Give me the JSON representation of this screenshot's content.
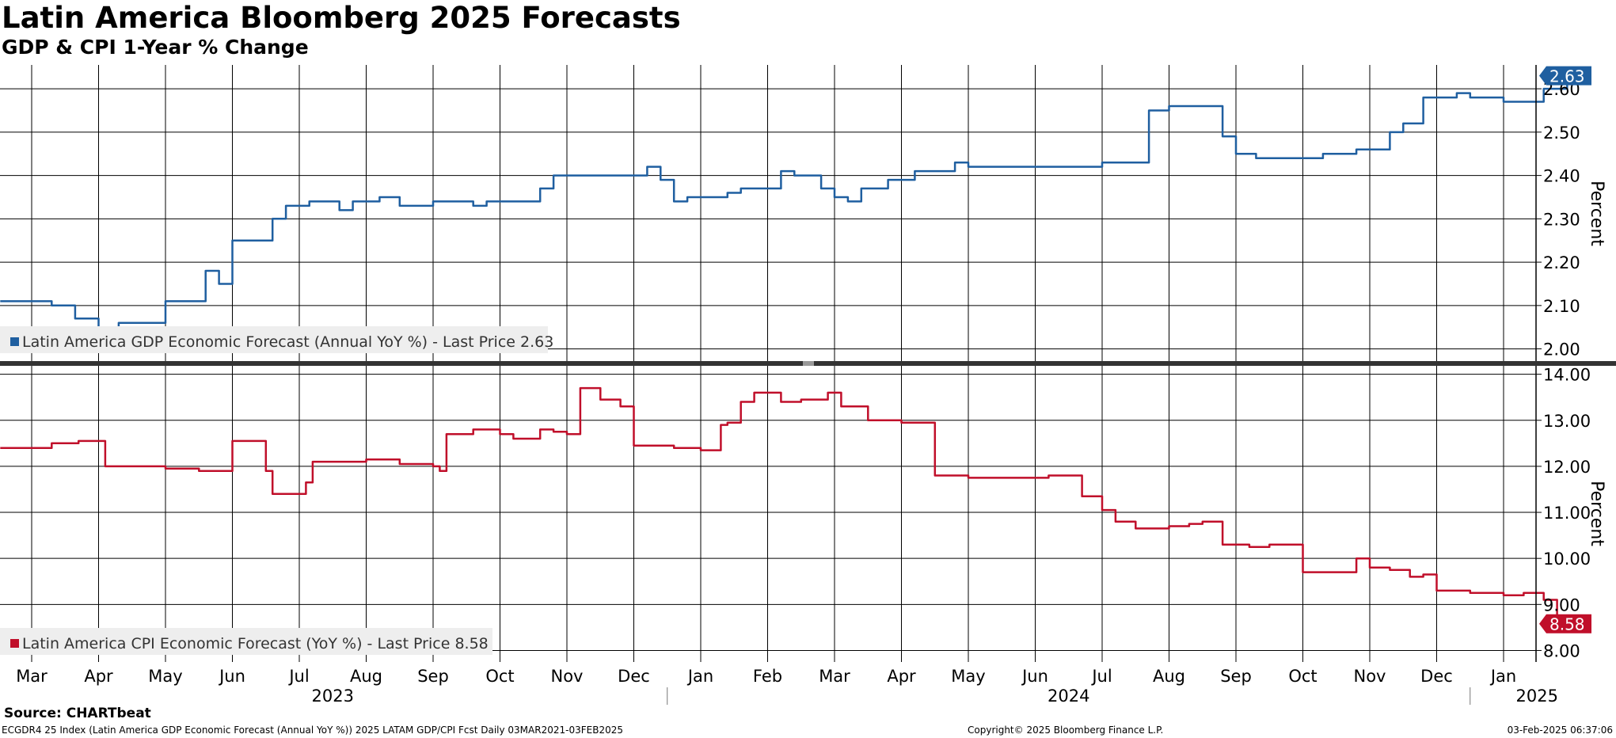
{
  "title": "Latin America Bloomberg 2025 Forecasts",
  "subtitle": "GDP & CPI 1-Year % Change",
  "source": "Source: CHARTbeat",
  "footer": {
    "left": "ECGDR4 25 Index (Latin America GDP Economic Forecast (Annual YoY %)) 2025 LATAM GDP/CPI Fcst  Daily 03MAR2021-03FEB2025",
    "center": "Copyright© 2025 Bloomberg Finance L.P.",
    "right": "03-Feb-2025 06:37:06"
  },
  "colors": {
    "gdp": "#1f5fa0",
    "cpi": "#c00f2a",
    "grid": "#000000",
    "legend_bg": "#eeeeee"
  },
  "chart_data": [
    {
      "type": "line",
      "name": "gdp",
      "ylabel": "Percent",
      "ylim": [
        1.97,
        2.655
      ],
      "yticks": [
        "2.00",
        "2.10",
        "2.20",
        "2.30",
        "2.40",
        "2.50",
        "2.60"
      ],
      "legend": "Latin America GDP Economic Forecast (Annual YoY %) - Last Price 2.63",
      "last_price_label": "2.63",
      "last_price": 2.63,
      "x": [
        0,
        0.3,
        0.65,
        0.7,
        1.0,
        1.3,
        1.5,
        1.7,
        2.0,
        2.3,
        2.5,
        2.6,
        2.8,
        3.0,
        3.2,
        3.4,
        3.6,
        3.8,
        4.0,
        4.15,
        4.3,
        4.45,
        4.6,
        4.8,
        5.0,
        5.2,
        5.5,
        5.6,
        5.8,
        6.0,
        6.2,
        6.6,
        6.8,
        7.0,
        7.2,
        7.4,
        7.6,
        7.8,
        8.0,
        8.2,
        8.5,
        8.8,
        9.0,
        9.2,
        9.4,
        9.6,
        9.8,
        10.0,
        10.2,
        10.4,
        10.6,
        10.8,
        11.0,
        11.2,
        11.4,
        11.6,
        11.8,
        12.0,
        12.2,
        12.4,
        12.6,
        12.8,
        13.0,
        13.2,
        13.4,
        13.6,
        13.8,
        14.0,
        14.2,
        14.5,
        15.0,
        15.5,
        16.0,
        16.3,
        16.5,
        16.7,
        17.0,
        17.3,
        17.5,
        17.8,
        18.0,
        18.3,
        18.5,
        18.8,
        19.0,
        19.3,
        19.5,
        19.8,
        20.0,
        20.3,
        20.5,
        20.8,
        21.0,
        21.3,
        21.5,
        21.8,
        22.0,
        22.3,
        22.6,
        22.95
      ],
      "values": [
        2.11,
        2.1,
        2.07,
        2.07,
        2.05,
        2.06,
        2.06,
        2.06,
        2.11,
        2.11,
        2.11,
        2.18,
        2.15,
        2.25,
        2.25,
        2.25,
        2.3,
        2.33,
        2.33,
        2.34,
        2.34,
        2.34,
        2.32,
        2.34,
        2.34,
        2.35,
        2.33,
        2.33,
        2.33,
        2.34,
        2.34,
        2.33,
        2.34,
        2.34,
        2.34,
        2.34,
        2.37,
        2.4,
        2.4,
        2.4,
        2.4,
        2.4,
        2.4,
        2.42,
        2.39,
        2.34,
        2.35,
        2.35,
        2.35,
        2.36,
        2.37,
        2.37,
        2.37,
        2.41,
        2.4,
        2.4,
        2.37,
        2.35,
        2.34,
        2.37,
        2.37,
        2.39,
        2.39,
        2.41,
        2.41,
        2.41,
        2.43,
        2.42,
        2.42,
        2.42,
        2.42,
        2.42,
        2.43,
        2.43,
        2.43,
        2.55,
        2.56,
        2.56,
        2.56,
        2.49,
        2.45,
        2.44,
        2.44,
        2.44,
        2.44,
        2.45,
        2.45,
        2.46,
        2.46,
        2.5,
        2.52,
        2.58,
        2.58,
        2.59,
        2.58,
        2.58,
        2.57,
        2.57,
        2.6,
        2.63
      ]
    },
    {
      "type": "line",
      "name": "cpi",
      "ylabel": "Percent",
      "ylim": [
        7.75,
        14.2
      ],
      "yticks": [
        "8.00",
        "9.00",
        "10.00",
        "11.00",
        "12.00",
        "13.00",
        "14.00"
      ],
      "legend": "Latin America CPI Economic Forecast (YoY %) - Last Price 8.58",
      "last_price_label": "8.58",
      "last_price": 8.58,
      "x": [
        0,
        0.3,
        0.7,
        1.0,
        1.1,
        1.5,
        2.0,
        2.5,
        2.9,
        3.0,
        3.4,
        3.5,
        3.6,
        4.0,
        4.1,
        4.2,
        4.6,
        5.0,
        5.5,
        6.0,
        6.1,
        6.2,
        6.6,
        7.0,
        7.2,
        7.6,
        7.8,
        8.0,
        8.2,
        8.5,
        8.8,
        9.0,
        9.3,
        9.6,
        10.0,
        10.3,
        10.4,
        10.6,
        10.8,
        11.0,
        11.2,
        11.5,
        11.9,
        12.1,
        12.5,
        13.0,
        13.5,
        14.0,
        14.5,
        15.0,
        15.2,
        15.5,
        15.7,
        16.0,
        16.2,
        16.5,
        17.0,
        17.3,
        17.5,
        17.8,
        18.0,
        18.2,
        18.5,
        18.8,
        19.0,
        19.3,
        19.5,
        19.8,
        20.0,
        20.3,
        20.6,
        20.8,
        21.0,
        21.5,
        22.0,
        22.1,
        22.3,
        22.6,
        22.8,
        22.95
      ],
      "values": [
        12.4,
        12.5,
        12.55,
        12.55,
        12.0,
        12.0,
        11.95,
        11.9,
        11.9,
        12.55,
        12.55,
        11.9,
        11.4,
        11.4,
        11.65,
        12.1,
        12.1,
        12.15,
        12.05,
        12.0,
        11.9,
        12.7,
        12.8,
        12.7,
        12.6,
        12.8,
        12.75,
        12.7,
        13.7,
        13.45,
        13.3,
        12.45,
        12.45,
        12.4,
        12.35,
        12.9,
        12.95,
        13.4,
        13.6,
        13.6,
        13.4,
        13.45,
        13.6,
        13.3,
        13.0,
        12.95,
        11.8,
        11.75,
        11.75,
        11.75,
        11.8,
        11.8,
        11.35,
        11.05,
        10.8,
        10.65,
        10.7,
        10.75,
        10.8,
        10.3,
        10.3,
        10.25,
        10.3,
        10.3,
        9.7,
        9.7,
        9.7,
        10.0,
        9.8,
        9.75,
        9.6,
        9.65,
        9.3,
        9.25,
        9.2,
        9.2,
        9.25,
        9.1,
        8.6,
        8.58
      ]
    }
  ],
  "x_axis": {
    "months": [
      {
        "label": "Mar",
        "x": 0
      },
      {
        "label": "Apr",
        "x": 1
      },
      {
        "label": "May",
        "x": 2
      },
      {
        "label": "Jun",
        "x": 3
      },
      {
        "label": "Jul",
        "x": 4
      },
      {
        "label": "Aug",
        "x": 5
      },
      {
        "label": "Sep",
        "x": 6
      },
      {
        "label": "Oct",
        "x": 7
      },
      {
        "label": "Nov",
        "x": 8
      },
      {
        "label": "Dec",
        "x": 9
      },
      {
        "label": "Jan",
        "x": 10
      },
      {
        "label": "Feb",
        "x": 11
      },
      {
        "label": "Mar",
        "x": 12
      },
      {
        "label": "Apr",
        "x": 13
      },
      {
        "label": "May",
        "x": 14
      },
      {
        "label": "Jun",
        "x": 15
      },
      {
        "label": "Jul",
        "x": 16
      },
      {
        "label": "Aug",
        "x": 17
      },
      {
        "label": "Sep",
        "x": 18
      },
      {
        "label": "Oct",
        "x": 19
      },
      {
        "label": "Nov",
        "x": 20
      },
      {
        "label": "Dec",
        "x": 21
      },
      {
        "label": "Jan",
        "x": 22
      }
    ],
    "years": [
      {
        "label": "2023",
        "x": 4.5
      },
      {
        "label": "2024",
        "x": 15.5
      },
      {
        "label": "2025",
        "x": 22.5
      }
    ],
    "year_dividers": [
      9.5,
      21.5
    ]
  }
}
